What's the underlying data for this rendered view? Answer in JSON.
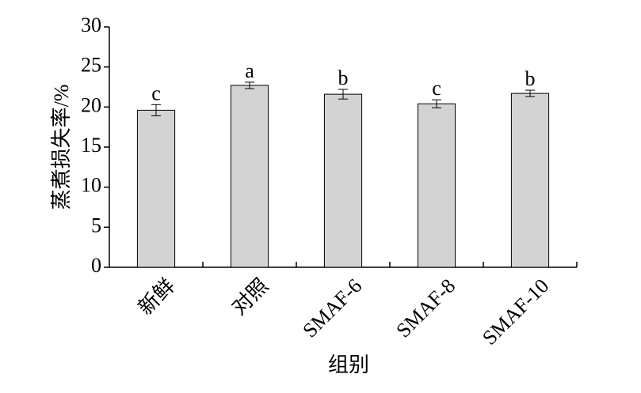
{
  "chart_data": {
    "type": "bar",
    "categories": [
      "新鲜",
      "对照",
      "SMAF-6",
      "SMAF-8",
      "SMAF-10"
    ],
    "values": [
      19.6,
      22.7,
      21.6,
      20.4,
      21.7
    ],
    "errors": [
      0.7,
      0.4,
      0.6,
      0.5,
      0.4
    ],
    "labels": [
      "c",
      "a",
      "b",
      "c",
      "b"
    ],
    "color": "#d3d3d3",
    "ylabel": "蒸煮损失率/%",
    "xlabel": "组别",
    "ylim": [
      0,
      30
    ],
    "yticks": [
      0,
      5,
      10,
      15,
      20,
      25,
      30
    ]
  }
}
